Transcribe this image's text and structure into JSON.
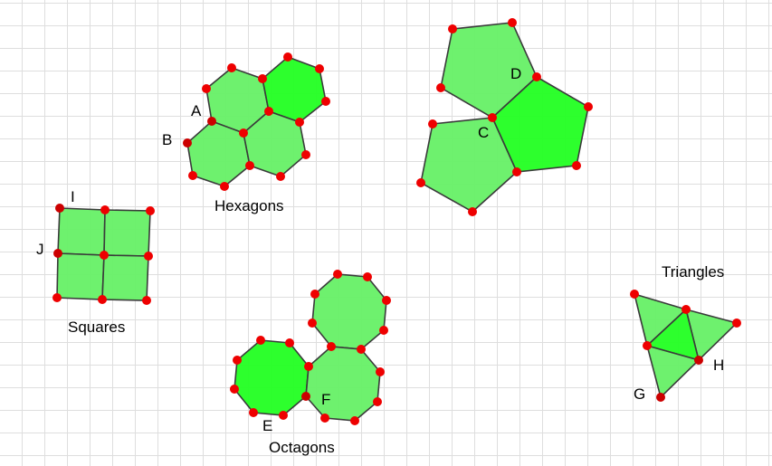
{
  "group_labels": {
    "hexagons": "Hexagons",
    "squares": "Squares",
    "octagons": "Octagons",
    "triangles": "Triangles"
  },
  "point_labels": {
    "A": "A",
    "B": "B",
    "C": "C",
    "D": "D",
    "E": "E",
    "F": "F",
    "G": "G",
    "H": "H",
    "I": "I",
    "J": "J"
  },
  "colors": {
    "light_fill": "#66f066",
    "dark_fill": "#22ff22",
    "point": "#ee0000",
    "grid": "#dedede"
  }
}
